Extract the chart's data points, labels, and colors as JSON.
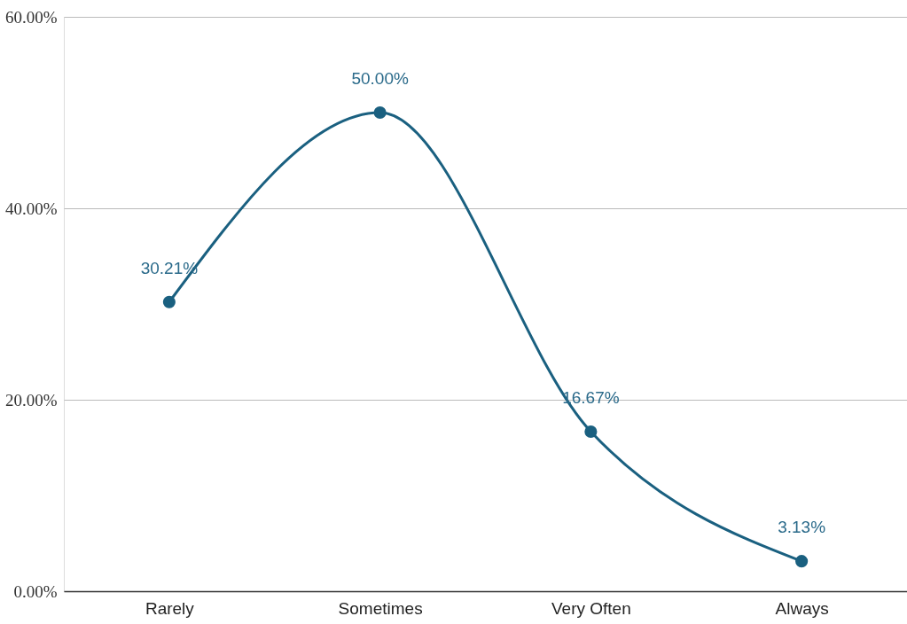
{
  "chart_data": {
    "type": "line",
    "categories": [
      "Rarely",
      "Sometimes",
      "Very Often",
      "Always"
    ],
    "series": [
      {
        "color": "#1a6080",
        "values": [
          30.21,
          50.0,
          16.67,
          3.13
        ],
        "value_labels": [
          "30.21%",
          "50.00%",
          "16.67%",
          "3.13%"
        ]
      }
    ],
    "ylim": [
      0,
      60
    ],
    "yticks": [
      {
        "value": 0,
        "label": "0.00%"
      },
      {
        "value": 20,
        "label": "20.00%"
      },
      {
        "value": 40,
        "label": "40.00%"
      },
      {
        "value": 60,
        "label": "60.00%"
      }
    ],
    "grid": "y",
    "marker": "circle",
    "line_style": "solid"
  }
}
